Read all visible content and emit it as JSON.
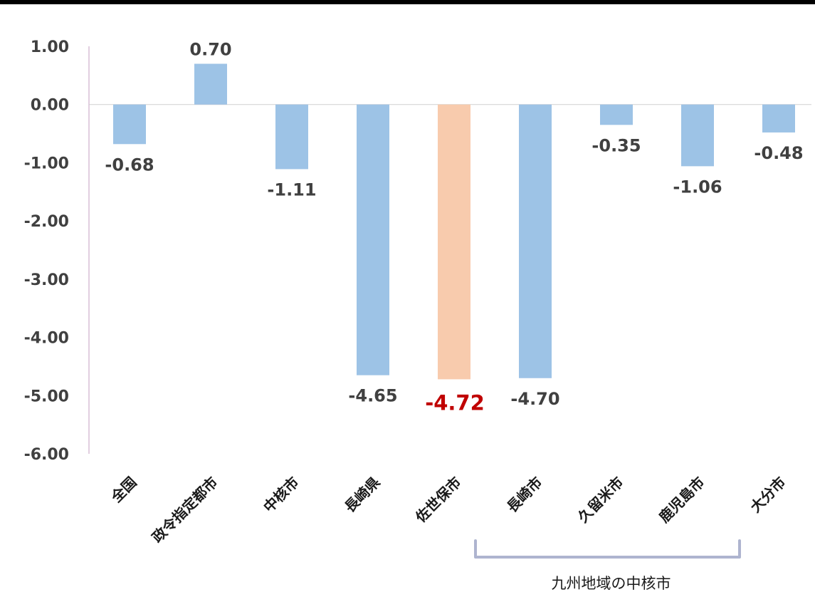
{
  "chart_data": {
    "type": "bar",
    "categories": [
      "全国",
      "政令指定都市",
      "中核市",
      "長崎県",
      "佐世保市",
      "長崎市",
      "久留米市",
      "鹿児島市",
      "大分市"
    ],
    "values": [
      -0.68,
      0.7,
      -1.11,
      -4.65,
      -4.72,
      -4.7,
      -0.35,
      -1.06,
      -0.48
    ],
    "value_labels": [
      "-0.68",
      "0.70",
      "-1.11",
      "-4.65",
      "-4.72",
      "-4.70",
      "-0.35",
      "-1.06",
      "-0.48"
    ],
    "highlight_index": 4,
    "ylim": [
      -6,
      1
    ],
    "y_ticks": [
      "1.00",
      "0.00",
      "-1.00",
      "-2.00",
      "-3.00",
      "-4.00",
      "-5.00",
      "-6.00"
    ],
    "title": "",
    "xlabel": "",
    "ylabel": "",
    "grid": false,
    "group_bracket": {
      "label": "九州地域の中核市",
      "start_index": 5,
      "end_index": 8
    },
    "colors": {
      "bar": "#9dc3e6",
      "highlight_bar": "#f8cbad",
      "highlight_label": "#c00000",
      "text": "#404040",
      "bracket": "#aeb4cf",
      "axis": "#e2cfe0"
    }
  }
}
